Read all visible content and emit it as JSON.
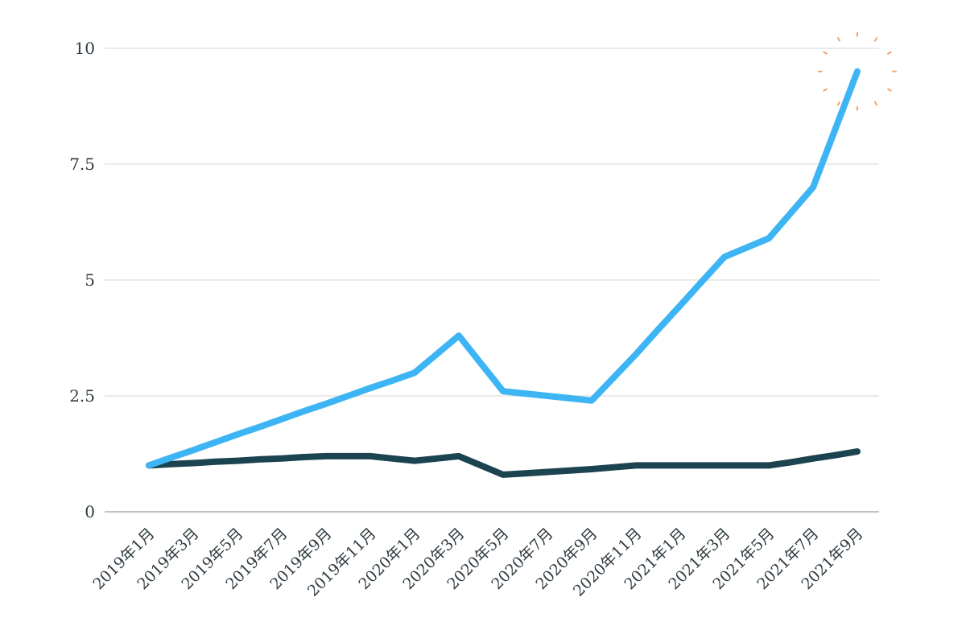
{
  "chart_data": {
    "type": "line",
    "title": "",
    "xlabel": "",
    "ylabel": "",
    "ylim": [
      0,
      10
    ],
    "yticks": [
      0,
      2.5,
      5,
      7.5,
      10
    ],
    "ytick_labels": [
      "0",
      "2.5",
      "5",
      "7.5",
      "10"
    ],
    "grid": true,
    "x": [
      "2019年1月",
      "2019年2月",
      "2019年3月",
      "2019年4月",
      "2019年5月",
      "2019年6月",
      "2019年7月",
      "2019年8月",
      "2019年9月",
      "2019年10月",
      "2019年11月",
      "2019年12月",
      "2020年1月",
      "2020年2月",
      "2020年3月",
      "2020年4月",
      "2020年5月",
      "2020年6月",
      "2020年7月",
      "2020年8月",
      "2020年9月",
      "2020年10月",
      "2020年11月",
      "2020年12月",
      "2021年1月",
      "2021年2月",
      "2021年3月",
      "2021年4月",
      "2021年5月",
      "2021年6月",
      "2021年7月",
      "2021年8月",
      "2021年9月"
    ],
    "xtick_labels": [
      "2019年1月",
      "2019年3月",
      "2019年5月",
      "2019年7月",
      "2019年9月",
      "2019年11月",
      "2020年1月",
      "2020年3月",
      "2020年5月",
      "2020年7月",
      "2020年9月",
      "2020年11月",
      "2021年1月",
      "2021年3月",
      "2021年5月",
      "2021年7月",
      "2021年9月"
    ],
    "series": [
      {
        "color": "#3db5f5",
        "values": [
          1.0,
          1.17,
          1.33,
          1.5,
          1.67,
          1.83,
          2.0,
          2.17,
          2.33,
          2.5,
          2.67,
          2.83,
          3.0,
          3.4,
          3.8,
          3.2,
          2.6,
          2.55,
          2.5,
          2.45,
          2.4,
          2.9,
          3.4,
          3.93,
          4.45,
          4.98,
          5.5,
          5.7,
          5.9,
          6.45,
          7.0,
          8.25,
          9.5
        ]
      },
      {
        "color": "#1b4350",
        "values": [
          1.0,
          1.03,
          1.05,
          1.08,
          1.1,
          1.13,
          1.15,
          1.18,
          1.2,
          1.2,
          1.2,
          1.15,
          1.1,
          1.15,
          1.2,
          1.0,
          0.8,
          0.83,
          0.86,
          0.89,
          0.92,
          0.96,
          1.0,
          1.0,
          1.0,
          1.0,
          1.0,
          1.0,
          1.0,
          1.07,
          1.15,
          1.22,
          1.3
        ]
      }
    ],
    "highlight": {
      "series_index": 0,
      "point_index": 32,
      "color": "#f2a36b"
    }
  }
}
